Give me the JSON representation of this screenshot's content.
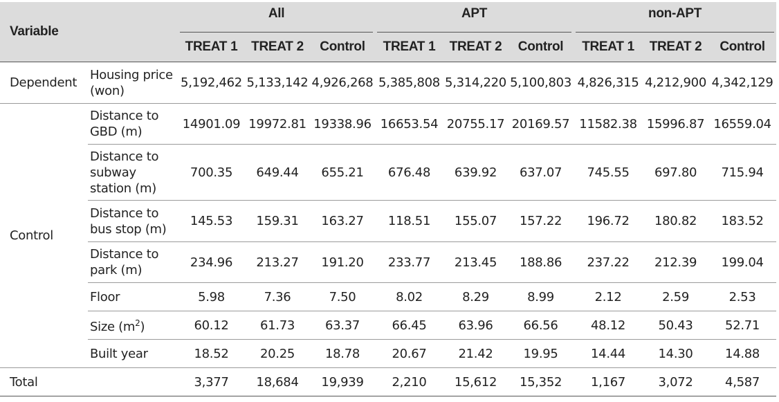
{
  "header": {
    "variable": "Variable",
    "groups": [
      "All",
      "APT",
      "non-APT"
    ],
    "subcols": [
      "TREAT 1",
      "TREAT 2",
      "Control",
      "TREAT 1",
      "TREAT 2",
      "Control",
      "TREAT 1",
      "TREAT 2",
      "Control"
    ]
  },
  "rows": {
    "dependent": {
      "category": "Dependent",
      "name_line1": "Housing price",
      "name_line2": "(won)",
      "values": [
        "5,192,462",
        "5,133,142",
        "4,926,268",
        "5,385,808",
        "5,314,220",
        "5,100,803",
        "4,826,315",
        "4,212,900",
        "4,342,129"
      ]
    },
    "control_category": "Control",
    "gbd": {
      "name_line1": "Distance to",
      "name_line2": "GBD (m)",
      "values": [
        "14901.09",
        "19972.81",
        "19338.96",
        "16653.54",
        "20755.17",
        "20169.57",
        "11582.38",
        "15996.87",
        "16559.04"
      ]
    },
    "subway": {
      "name_line1": "Distance to",
      "name_line2": "subway",
      "name_line3": "station (m)",
      "values": [
        "700.35",
        "649.44",
        "655.21",
        "676.48",
        "639.92",
        "637.07",
        "745.55",
        "697.80",
        "715.94"
      ]
    },
    "bus": {
      "name_line1": "Distance to",
      "name_line2": "bus stop (m)",
      "values": [
        "145.53",
        "159.31",
        "163.27",
        "118.51",
        "155.07",
        "157.22",
        "196.72",
        "180.82",
        "183.52"
      ]
    },
    "park": {
      "name_line1": "Distance to",
      "name_line2": "park (m)",
      "values": [
        "234.96",
        "213.27",
        "191.20",
        "233.77",
        "213.45",
        "188.86",
        "237.22",
        "212.39",
        "199.04"
      ]
    },
    "floor": {
      "name": "Floor",
      "values": [
        "5.98",
        "7.36",
        "7.50",
        "8.02",
        "8.29",
        "8.99",
        "2.12",
        "2.59",
        "2.53"
      ]
    },
    "size": {
      "name_prefix": "Size (m",
      "name_sup": "2",
      "name_suffix": ")",
      "values": [
        "60.12",
        "61.73",
        "63.37",
        "66.45",
        "63.96",
        "66.56",
        "48.12",
        "50.43",
        "52.71"
      ]
    },
    "built": {
      "name": "Built year",
      "values": [
        "18.52",
        "20.25",
        "18.78",
        "20.67",
        "21.42",
        "19.95",
        "14.44",
        "14.30",
        "14.88"
      ]
    },
    "total": {
      "category": "Total",
      "values": [
        "3,377",
        "18,684",
        "19,939",
        "2,210",
        "15,612",
        "15,352",
        "1,167",
        "3,072",
        "4,587"
      ]
    }
  }
}
